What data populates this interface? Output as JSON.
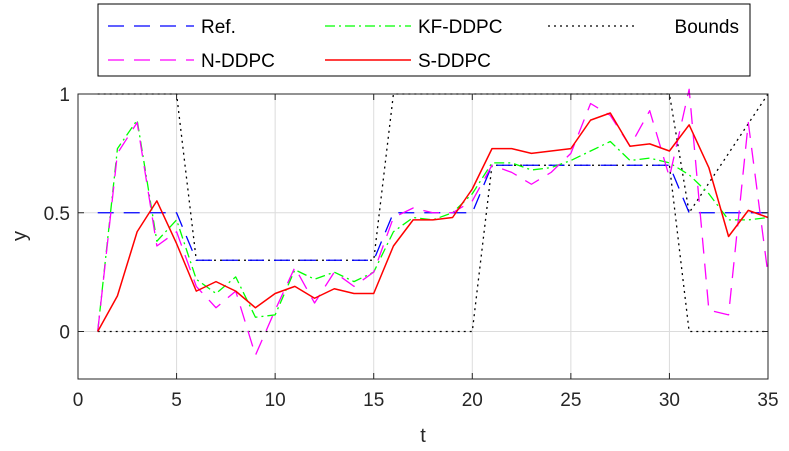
{
  "chart_data": {
    "type": "line",
    "xlabel": "t",
    "ylabel": "y",
    "xlim": [
      0,
      35
    ],
    "ylim": [
      -0.2,
      1
    ],
    "xticks": [
      "0",
      "5",
      "10",
      "15",
      "20",
      "25",
      "30",
      "35"
    ],
    "yticks": [
      "0",
      "0.5",
      "1"
    ],
    "xtick_values": [
      0,
      5,
      10,
      15,
      20,
      25,
      30,
      35
    ],
    "ytick_values": [
      0,
      0.5,
      1
    ],
    "grid": true,
    "legend_position": "top",
    "x": [
      1,
      2,
      3,
      4,
      5,
      6,
      7,
      8,
      9,
      10,
      11,
      12,
      13,
      14,
      15,
      16,
      17,
      18,
      19,
      20,
      21,
      22,
      23,
      24,
      25,
      26,
      27,
      28,
      29,
      30,
      31,
      32,
      33,
      34,
      35
    ],
    "series": [
      {
        "name": "Ref.",
        "color": "#0000ff",
        "style": "longdash",
        "values": [
          0.5,
          0.5,
          0.5,
          0.5,
          0.5,
          0.3,
          0.3,
          0.3,
          0.3,
          0.3,
          0.3,
          0.3,
          0.3,
          0.3,
          0.3,
          0.5,
          0.5,
          0.5,
          0.5,
          0.5,
          0.7,
          0.7,
          0.7,
          0.7,
          0.7,
          0.7,
          0.7,
          0.7,
          0.7,
          0.7,
          0.5,
          0.5,
          0.5,
          0.5,
          0.5
        ]
      },
      {
        "name": "KF-DDPC",
        "color": "#00ff00",
        "style": "dashdot",
        "values": [
          0.0,
          0.77,
          0.89,
          0.38,
          0.47,
          0.22,
          0.16,
          0.23,
          0.06,
          0.07,
          0.26,
          0.22,
          0.25,
          0.21,
          0.25,
          0.42,
          0.48,
          0.47,
          0.5,
          0.58,
          0.71,
          0.71,
          0.68,
          0.69,
          0.72,
          0.76,
          0.8,
          0.72,
          0.73,
          0.71,
          0.66,
          0.58,
          0.47,
          0.47,
          0.48
        ]
      },
      {
        "name": "Bounds",
        "color": "#000000",
        "style": "dotted",
        "segments": [
          {
            "x": [
              1,
              5,
              6,
              15,
              16,
              30,
              31,
              35
            ],
            "values": [
              1,
              1,
              0.3,
              0.3,
              1,
              1,
              0.5,
              1
            ]
          },
          {
            "x": [
              1,
              20,
              21,
              30,
              31,
              35
            ],
            "values": [
              0,
              0,
              0.7,
              0.7,
              0,
              0
            ]
          }
        ]
      },
      {
        "name": "N-DDPC",
        "color": "#ff00ff",
        "style": "longdash",
        "values": [
          0.0,
          0.75,
          0.88,
          0.36,
          0.42,
          0.19,
          0.1,
          0.17,
          -0.1,
          0.09,
          0.27,
          0.12,
          0.25,
          0.19,
          0.25,
          0.48,
          0.52,
          0.5,
          0.5,
          0.55,
          0.7,
          0.67,
          0.62,
          0.67,
          0.75,
          0.96,
          0.91,
          0.78,
          0.93,
          0.65,
          1.02,
          0.09,
          0.07,
          0.88,
          0.24
        ]
      },
      {
        "name": "S-DDPC",
        "color": "#ff0000",
        "style": "solid",
        "values": [
          0.0,
          0.15,
          0.42,
          0.55,
          0.37,
          0.17,
          0.21,
          0.17,
          0.1,
          0.16,
          0.19,
          0.14,
          0.18,
          0.16,
          0.16,
          0.36,
          0.47,
          0.47,
          0.48,
          0.6,
          0.77,
          0.77,
          0.75,
          0.76,
          0.77,
          0.89,
          0.92,
          0.78,
          0.79,
          0.76,
          0.87,
          0.69,
          0.4,
          0.51,
          0.48
        ]
      }
    ]
  }
}
